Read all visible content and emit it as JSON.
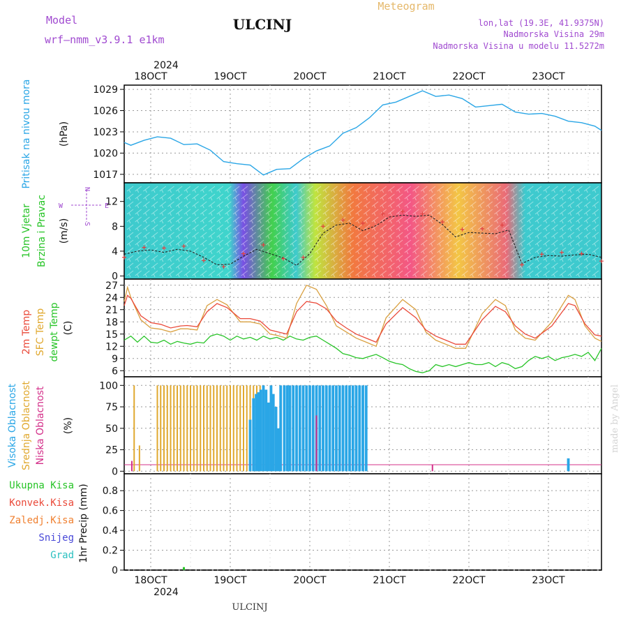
{
  "header": {
    "model_label": "Model",
    "model_name": "wrf—nmm_v3.9.1  e1km",
    "station": "ULCINJ",
    "meteogram": "Meteogram",
    "lonlat": "lon,lat (19.3E, 41.9375N)",
    "elevation": "Nadmorska Visina 29m",
    "model_elevation": "Nadmorska Visina u modelu 11.5272m"
  },
  "footer": {
    "station": "ULCINJ",
    "credit": "made by Angel"
  },
  "time_axis": {
    "year": "2024",
    "days": [
      "18OCT",
      "19OCT",
      "20OCT",
      "21OCT",
      "22OCT",
      "23OCT"
    ],
    "start_hour_offset": -8,
    "span_hours": 144
  },
  "colors": {
    "pressure": "#2aa6e6",
    "temp2m": "#ea4a3a",
    "sfc": "#d9a040",
    "dewpt": "#27c427",
    "high_cloud": "#2aa6e6",
    "mid_cloud": "#e0a82e",
    "low_cloud": "#d4308a",
    "grid": "#9a9a9a"
  },
  "chart_data": [
    {
      "id": "pressure",
      "type": "line",
      "ylabel_rot": "Pritisak na nivou mora",
      "unit": "(hPa)",
      "yticks": [
        1017,
        1020,
        1023,
        1026,
        1029
      ],
      "ylim": [
        1015.8,
        1029.6
      ],
      "series": [
        {
          "x": [
            0,
            2,
            6,
            10,
            14,
            18,
            22,
            26,
            30,
            34,
            38,
            42,
            46,
            50,
            54,
            58,
            62,
            66,
            70,
            74,
            78,
            82,
            86,
            90,
            94,
            98,
            102,
            106,
            110,
            114,
            118,
            122,
            126,
            130,
            134,
            138,
            142,
            144
          ],
          "y": [
            1021.5,
            1021.1,
            1021.8,
            1022.3,
            1022.1,
            1021.2,
            1021.3,
            1020.4,
            1018.8,
            1018.5,
            1018.3,
            1016.9,
            1017.7,
            1017.8,
            1019.2,
            1020.3,
            1021.0,
            1022.8,
            1023.6,
            1025.0,
            1026.8,
            1027.2,
            1028.0,
            1028.8,
            1028.0,
            1028.2,
            1027.7,
            1026.5,
            1026.7,
            1026.9,
            1025.8,
            1025.5,
            1025.6,
            1025.2,
            1024.5,
            1024.3,
            1023.8,
            1023.2
          ]
        }
      ]
    },
    {
      "id": "wind",
      "type": "line",
      "ylabel_rot1": "10m Vjetar",
      "ylabel_rot2": "Brzina i Pravac",
      "unit": "(m/s)",
      "compass": {
        "n": "N",
        "s": "S",
        "e": "E",
        "w": "W"
      },
      "yticks": [
        0,
        4,
        8,
        12
      ],
      "ylim": [
        -0.5,
        15
      ],
      "speed": {
        "x": [
          0,
          4,
          8,
          12,
          16,
          20,
          24,
          28,
          32,
          36,
          40,
          44,
          48,
          52,
          56,
          60,
          64,
          68,
          72,
          76,
          80,
          84,
          88,
          92,
          96,
          100,
          104,
          108,
          112,
          116,
          120,
          124,
          128,
          132,
          136,
          140,
          144
        ],
        "y": [
          3.5,
          4.0,
          4.2,
          3.8,
          4.3,
          4.0,
          3.0,
          1.8,
          1.9,
          3.2,
          4.3,
          3.6,
          2.9,
          1.7,
          3.6,
          6.9,
          8.2,
          8.5,
          7.3,
          8.1,
          9.5,
          9.8,
          9.6,
          9.8,
          8.3,
          6.3,
          7.0,
          6.9,
          6.8,
          7.4,
          2.0,
          3.0,
          3.3,
          3.2,
          3.4,
          3.5,
          3.0
        ]
      },
      "gust": {
        "x": [
          0,
          6,
          12,
          18,
          24,
          30,
          36,
          42,
          48,
          54,
          60,
          66,
          72,
          78,
          84,
          90,
          96,
          102,
          108,
          114,
          120,
          126,
          132,
          138,
          144
        ],
        "y": [
          3.0,
          4.6,
          4.5,
          4.8,
          2.5,
          1.5,
          3.6,
          5.0,
          2.8,
          3.0,
          8.0,
          9.0,
          8.5,
          10.0,
          10.4,
          10.0,
          8.7,
          7.5,
          7.6,
          8.2,
          1.8,
          3.5,
          3.8,
          3.6,
          2.4
        ]
      }
    },
    {
      "id": "temperature",
      "type": "line",
      "ylabels_rot": [
        "2m Temp",
        "SFC Temp",
        "dewpt Temp"
      ],
      "unit": "(C)",
      "yticks": [
        6,
        9,
        12,
        15,
        18,
        21,
        24,
        27
      ],
      "ylim": [
        4.5,
        28.5
      ],
      "series": [
        {
          "id": "temp2m",
          "x": [
            0,
            1,
            2,
            5,
            8,
            11,
            14,
            17,
            19,
            22,
            25,
            28,
            31,
            35,
            38,
            41,
            44,
            46,
            49,
            52,
            55,
            58,
            61,
            64,
            67,
            70,
            73,
            76,
            79,
            84,
            88,
            91,
            94,
            97,
            100,
            103,
            108,
            112,
            115,
            118,
            121,
            124,
            129,
            134,
            136,
            139,
            142,
            144
          ],
          "y": [
            22,
            24.5,
            23.8,
            19.5,
            17.8,
            17.4,
            16.5,
            17.0,
            17.1,
            16.8,
            20.5,
            22.5,
            21.5,
            18.8,
            18.8,
            18.2,
            16.0,
            15.6,
            15.0,
            20.5,
            23.0,
            22.6,
            21.2,
            18.2,
            16.5,
            15.0,
            14.0,
            13.0,
            17.5,
            21.5,
            19.0,
            16.0,
            14.5,
            13.5,
            12.5,
            12.5,
            18.5,
            21.8,
            20.5,
            17.0,
            15.0,
            14.0,
            17.0,
            22.5,
            22.0,
            17.5,
            14.8,
            14.5
          ]
        },
        {
          "id": "sfc",
          "x": [
            0,
            1,
            2,
            5,
            8,
            11,
            14,
            17,
            19,
            22,
            25,
            28,
            31,
            35,
            38,
            41,
            44,
            46,
            49,
            52,
            55,
            58,
            61,
            64,
            67,
            70,
            73,
            76,
            79,
            84,
            88,
            91,
            94,
            97,
            100,
            103,
            108,
            112,
            115,
            118,
            121,
            124,
            129,
            134,
            136,
            139,
            142,
            144
          ],
          "y": [
            23,
            26.5,
            24.0,
            18.5,
            16.5,
            16.2,
            15.5,
            16.3,
            16.3,
            16.0,
            22.0,
            23.5,
            22.2,
            18.0,
            18.0,
            17.5,
            15.0,
            14.7,
            14.0,
            22.5,
            27.0,
            26.0,
            22.0,
            17.0,
            15.5,
            14.0,
            13.0,
            12.0,
            19.0,
            23.5,
            21.0,
            15.5,
            13.5,
            12.5,
            11.5,
            11.5,
            20.0,
            23.5,
            22.0,
            16.0,
            14.0,
            13.5,
            18.0,
            24.5,
            23.5,
            17.0,
            14.0,
            13.2
          ]
        },
        {
          "id": "dewpt",
          "x": [
            0,
            2,
            4,
            6,
            8,
            10,
            12,
            14,
            16,
            18,
            20,
            22,
            24,
            26,
            28,
            30,
            32,
            34,
            36,
            38,
            40,
            42,
            44,
            46,
            48,
            50,
            52,
            54,
            56,
            58,
            60,
            62,
            64,
            66,
            68,
            70,
            72,
            74,
            76,
            78,
            80,
            82,
            84,
            86,
            88,
            90,
            92,
            94,
            96,
            98,
            100,
            102,
            104,
            106,
            108,
            110,
            112,
            114,
            116,
            118,
            120,
            122,
            124,
            126,
            128,
            130,
            132,
            134,
            136,
            138,
            140,
            142,
            144
          ],
          "y": [
            13.5,
            14.5,
            13.0,
            14.5,
            13.0,
            12.8,
            13.5,
            12.5,
            13.2,
            12.8,
            12.5,
            13.0,
            12.8,
            14.5,
            15.0,
            14.5,
            13.5,
            14.5,
            13.8,
            14.2,
            13.5,
            14.5,
            13.8,
            14.2,
            13.5,
            14.5,
            13.8,
            13.5,
            14.2,
            14.5,
            13.5,
            12.5,
            11.5,
            10.2,
            9.8,
            9.2,
            9.0,
            9.5,
            10.0,
            9.2,
            8.3,
            7.8,
            7.5,
            6.5,
            5.8,
            5.5,
            6.0,
            7.5,
            7.0,
            7.5,
            7.0,
            7.5,
            8.0,
            7.5,
            7.5,
            8.0,
            7.0,
            8.0,
            7.5,
            6.5,
            7.0,
            8.5,
            9.5,
            9.0,
            9.5,
            8.5,
            9.2,
            9.5,
            10.0,
            9.5,
            10.5,
            8.5,
            11.5
          ]
        }
      ]
    },
    {
      "id": "clouds",
      "type": "bar",
      "ylabels_rot": [
        "Visoka Oblacnost",
        "Srednja Oblacnost",
        "Niska Oblacnost"
      ],
      "unit": "(%)",
      "yticks": [
        0,
        25,
        50,
        75,
        100
      ],
      "ylim": [
        -3,
        110
      ],
      "high": {
        "x": [
          38,
          39,
          39.8,
          40.5,
          41.2,
          42,
          42.8,
          43.5,
          44.3,
          45,
          45.8,
          46.5,
          47.2,
          48.3,
          49.2,
          50,
          51,
          52,
          53,
          54,
          55,
          56,
          57,
          58,
          59,
          60,
          61,
          62,
          63,
          64,
          65,
          66,
          67,
          68,
          69,
          70,
          71,
          72,
          73,
          134
        ],
        "y": [
          60,
          85,
          90,
          92,
          95,
          100,
          95,
          80,
          100,
          90,
          75,
          50,
          100,
          100,
          100,
          100,
          100,
          100,
          100,
          100,
          100,
          100,
          100,
          100,
          100,
          100,
          100,
          100,
          100,
          100,
          100,
          100,
          100,
          100,
          100,
          100,
          100,
          100,
          100,
          15
        ]
      },
      "mid": {
        "x": [
          3,
          4.6,
          10,
          11,
          12,
          13,
          14,
          15,
          16,
          17,
          18,
          19,
          20,
          21,
          22,
          23,
          24,
          25,
          26,
          27,
          28,
          29,
          30,
          31,
          32,
          33,
          34,
          35,
          36,
          37,
          38,
          39,
          40,
          41,
          42
        ],
        "y": [
          100,
          30,
          100,
          100,
          100,
          100,
          100,
          100,
          100,
          100,
          100,
          100,
          100,
          100,
          100,
          100,
          100,
          100,
          100,
          100,
          100,
          100,
          100,
          100,
          100,
          100,
          100,
          100,
          100,
          100,
          100,
          100,
          100,
          100,
          100
        ]
      },
      "low": {
        "x": [
          2.3,
          58,
          93
        ],
        "y": [
          12,
          65,
          8
        ]
      }
    },
    {
      "id": "precip",
      "type": "bar",
      "legend_left": [
        "Ukupna Kisa",
        "Konvek.Kisa",
        "Zaledj.Kisa",
        "Snijeg",
        "Grad"
      ],
      "ylabel_rot": "1hr Precip (mm)",
      "yticks": [
        "0",
        "0.2",
        "0.4",
        "0.6",
        "0.8"
      ],
      "ylim": [
        0,
        0.97
      ],
      "bars": {
        "x": [
          18
        ],
        "y": [
          0.03
        ]
      }
    }
  ]
}
